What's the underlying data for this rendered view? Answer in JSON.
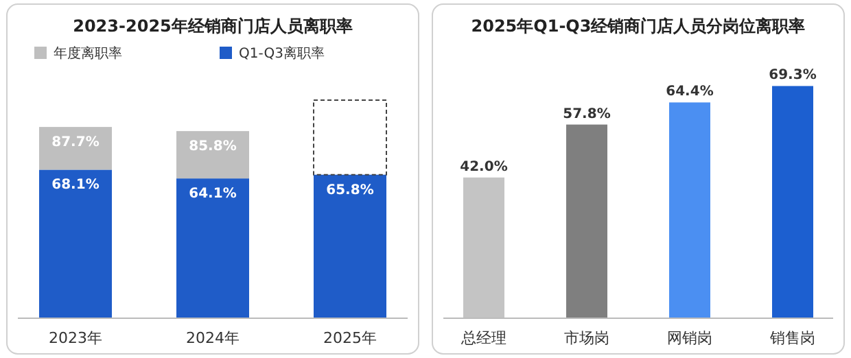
{
  "chart_data": [
    {
      "type": "bar",
      "title": "2023-2025年经销商门店人员离职率",
      "categories": [
        "2023年",
        "2024年",
        "2025年"
      ],
      "stacked": true,
      "legend": "top left",
      "ylim": [
        0,
        100
      ],
      "totals": [
        "87.7%",
        "85.8%",
        null
      ],
      "series": [
        {
          "name": "Q1-Q3离职率",
          "color": "#1f5cc8",
          "values": [
            68.1,
            64.1,
            65.8
          ],
          "value_labels": [
            "68.1%",
            "64.1%",
            "65.8%"
          ]
        },
        {
          "name": "年度离职率",
          "color": "#bfbfbf",
          "values": [
            19.6,
            21.7,
            null
          ]
        }
      ]
    },
    {
      "type": "bar",
      "title": "2025年Q1-Q3经销商门店人员分岗位离职率",
      "categories": [
        "总经理",
        "市场岗",
        "网销岗",
        "销售岗"
      ],
      "ylim": [
        0,
        70
      ],
      "values": [
        42.0,
        57.8,
        64.4,
        69.3
      ],
      "colors": [
        "#c4c4c4",
        "#7f7f7f",
        "#4b8ff2",
        "#1c5fd0"
      ],
      "value_labels": [
        "42.0%",
        "57.8%",
        "64.4%",
        "69.3%"
      ]
    }
  ]
}
